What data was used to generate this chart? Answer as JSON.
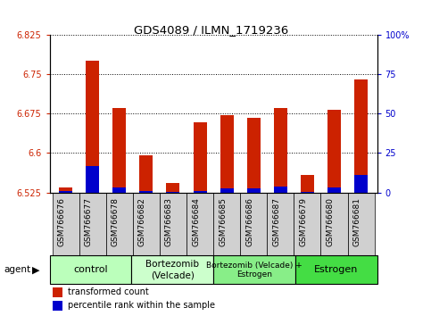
{
  "title": "GDS4089 / ILMN_1719236",
  "samples": [
    "GSM766676",
    "GSM766677",
    "GSM766678",
    "GSM766682",
    "GSM766683",
    "GSM766684",
    "GSM766685",
    "GSM766686",
    "GSM766687",
    "GSM766679",
    "GSM766680",
    "GSM766681"
  ],
  "red_values": [
    6.535,
    6.775,
    6.685,
    6.595,
    6.543,
    6.658,
    6.672,
    6.667,
    6.685,
    6.558,
    6.683,
    6.74
  ],
  "blue_values": [
    6.528,
    6.575,
    6.535,
    6.528,
    6.526,
    6.527,
    6.533,
    6.533,
    6.537,
    6.526,
    6.534,
    6.558
  ],
  "base": 6.525,
  "ylim": [
    6.525,
    6.825
  ],
  "yticks_left": [
    6.525,
    6.6,
    6.675,
    6.75,
    6.825
  ],
  "yticks_right": [
    0,
    25,
    50,
    75,
    100
  ],
  "red_color": "#cc2200",
  "blue_color": "#0000cc",
  "groups": [
    {
      "label": "control",
      "start": 0,
      "end": 3,
      "color": "#bbffbb",
      "fontsize": 8
    },
    {
      "label": "Bortezomib\n(Velcade)",
      "start": 3,
      "end": 6,
      "color": "#ccffcc",
      "fontsize": 7.5
    },
    {
      "label": "Bortezomib (Velcade) +\nEstrogen",
      "start": 6,
      "end": 9,
      "color": "#88ee88",
      "fontsize": 6.5
    },
    {
      "label": "Estrogen",
      "start": 9,
      "end": 12,
      "color": "#44dd44",
      "fontsize": 8
    }
  ],
  "agent_label": "agent",
  "legend_red": "transformed count",
  "legend_blue": "percentile rank within the sample",
  "bar_width": 0.5,
  "tick_bg_color": "#d0d0d0"
}
